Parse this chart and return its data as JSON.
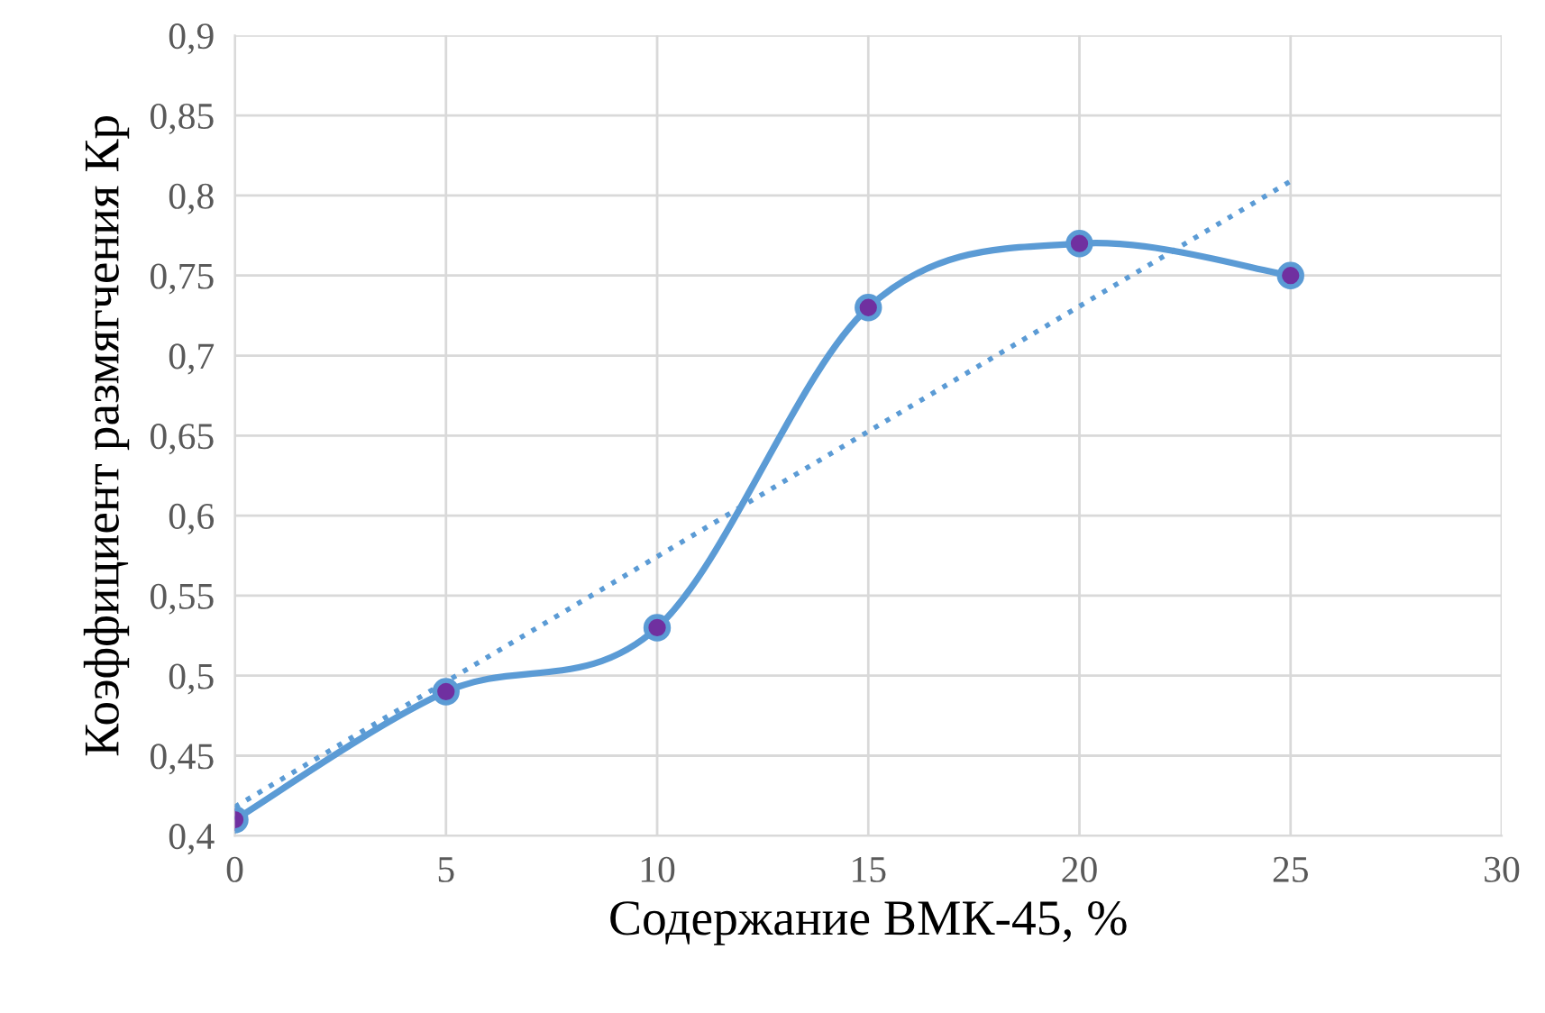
{
  "chart_data": {
    "type": "line",
    "xlabel": "Содержание ВМК-45, %",
    "ylabel": "Коэффициент размягчения Кр",
    "xlim": [
      0,
      30
    ],
    "xticks": [
      0,
      5,
      10,
      15,
      20,
      25,
      30
    ],
    "ylim": [
      0.4,
      0.9
    ],
    "yticks": [
      {
        "value": 0.4,
        "label": "0,4"
      },
      {
        "value": 0.45,
        "label": "0,45"
      },
      {
        "value": 0.5,
        "label": "0,5"
      },
      {
        "value": 0.55,
        "label": "0,55"
      },
      {
        "value": 0.6,
        "label": "0,6"
      },
      {
        "value": 0.65,
        "label": "0,65"
      },
      {
        "value": 0.7,
        "label": "0,7"
      },
      {
        "value": 0.75,
        "label": "0,75"
      },
      {
        "value": 0.8,
        "label": "0,8"
      },
      {
        "value": 0.85,
        "label": "0,85"
      },
      {
        "value": 0.9,
        "label": "0,9"
      }
    ],
    "grid": true,
    "legend": false,
    "series": [
      {
        "x": [
          0,
          5,
          10,
          15,
          20,
          25
        ],
        "values": [
          0.41,
          0.49,
          0.53,
          0.73,
          0.77,
          0.75
        ],
        "color": "#5b9bd5",
        "colors": [
          "#7030a0",
          "#7030a0",
          "#7030a0",
          "#7030a0",
          "#7030a0",
          "#7030a0"
        ],
        "marker": "circle",
        "line_style": "solid"
      },
      {
        "x": [
          0,
          25
        ],
        "values": [
          0.418,
          0.809
        ],
        "color": "#5b9bd5",
        "marker": "none",
        "line_style": "dotted"
      }
    ]
  }
}
